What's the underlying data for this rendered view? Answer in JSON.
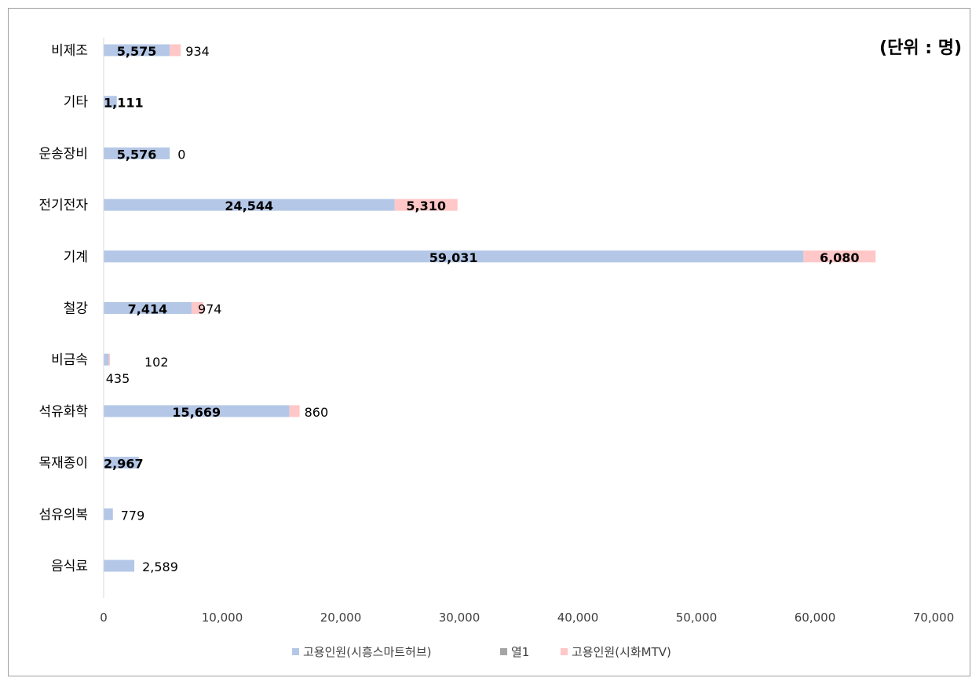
{
  "chart_data": {
    "type": "bar",
    "orientation": "horizontal",
    "stacked": true,
    "unit_note": "(단위 : 명)",
    "categories": [
      "비제조",
      "기타",
      "운송장비",
      "전기전자",
      "기계",
      "철강",
      "비금속",
      "석유화학",
      "목재종이",
      "섬유의복",
      "음식료"
    ],
    "series": [
      {
        "name": "고용인원(시흥스마트허브)",
        "color": "#b4c7e7",
        "values": [
          5575,
          1111,
          5576,
          24544,
          59031,
          7414,
          435,
          15669,
          2967,
          779,
          2589
        ],
        "labels": [
          "5,575",
          "1,111",
          "5,576",
          "24,544",
          "59,031",
          "7,414",
          "435",
          "15,669",
          "2,967",
          "779",
          "2,589"
        ]
      },
      {
        "name": "열1",
        "color": "#a5a5a5",
        "values": [
          null,
          null,
          null,
          null,
          null,
          null,
          null,
          null,
          null,
          null,
          null
        ],
        "labels": [
          null,
          null,
          null,
          null,
          null,
          null,
          null,
          null,
          null,
          null,
          null
        ]
      },
      {
        "name": "고용인원(시화MTV)",
        "color": "#ffc7c7",
        "values": [
          934,
          null,
          0,
          5310,
          6080,
          974,
          102,
          860,
          null,
          null,
          null
        ],
        "labels": [
          "934",
          null,
          "0",
          "5,310",
          "6,080",
          "974",
          "102",
          "860",
          null,
          null,
          null
        ]
      }
    ],
    "xlim": [
      0,
      70000
    ],
    "xticks": [
      0,
      10000,
      20000,
      30000,
      40000,
      50000,
      60000,
      70000
    ],
    "xtick_labels": [
      "0",
      "10,000",
      "20,000",
      "30,000",
      "40,000",
      "50,000",
      "60,000",
      "70,000"
    ],
    "grid": false,
    "legend_position": "bottom"
  }
}
